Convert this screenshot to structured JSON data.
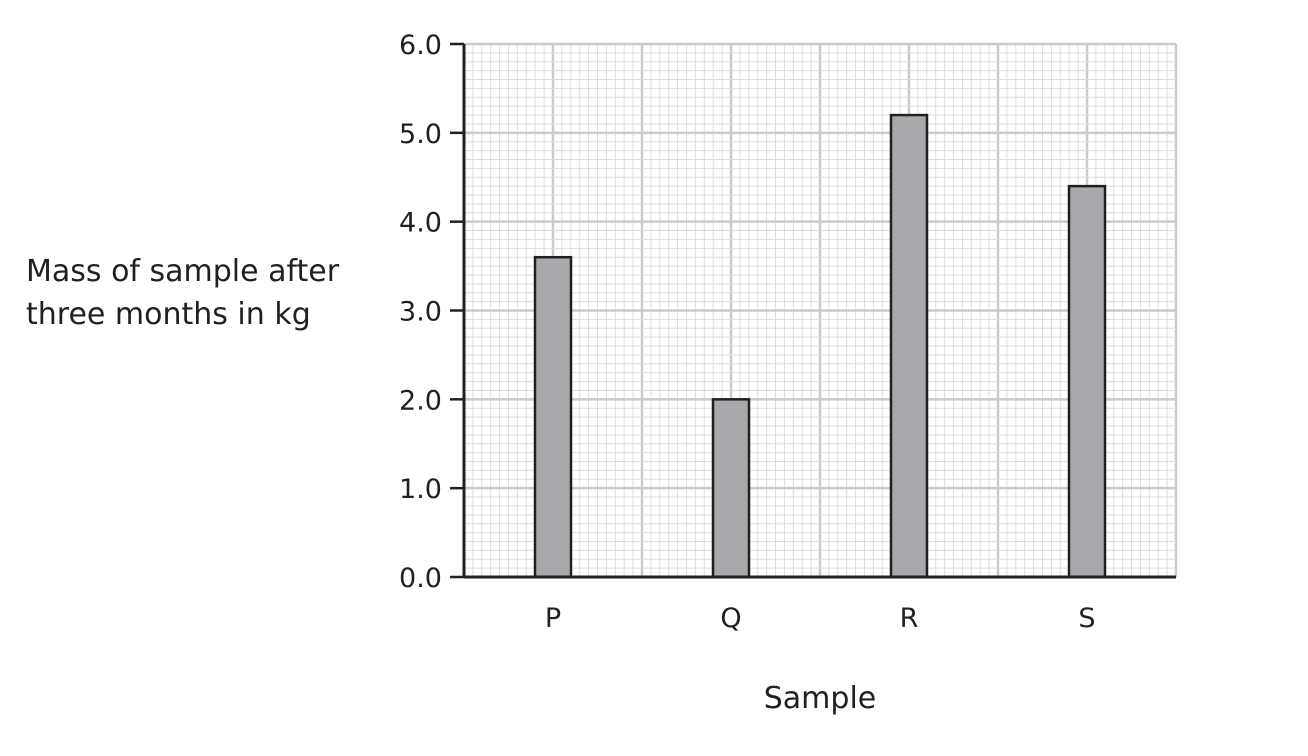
{
  "chart_data": {
    "type": "bar",
    "categories": [
      "P",
      "Q",
      "R",
      "S"
    ],
    "values": [
      3.6,
      2.0,
      5.2,
      4.4
    ],
    "title": "",
    "xlabel": "Sample",
    "ylabel_lines": [
      "Mass of sample after",
      "three months in kg"
    ],
    "ylim": [
      0,
      6
    ],
    "yticks": [
      "0.0",
      "1.0",
      "2.0",
      "3.0",
      "4.0",
      "5.0",
      "6.0"
    ],
    "grid": true,
    "bar_color": "#a7a9ac",
    "bar_edge_color": "#231f20",
    "major_grid_color": "#c9cacc",
    "minor_grid_color": "#dcdddf",
    "axis_color": "#231f20"
  }
}
